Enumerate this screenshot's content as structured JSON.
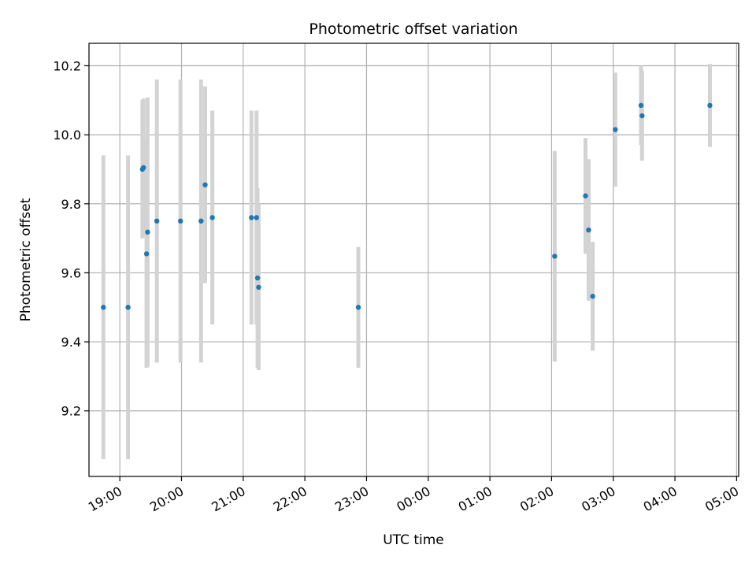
{
  "chart_data": {
    "type": "scatter",
    "title": "Photometric offset variation",
    "xlabel": "UTC time",
    "ylabel": "Photometric offset",
    "x_unit": "UTC time (HH:MM), 18:45 to 05:00 next day",
    "xlim": [
      "18:30",
      "05:02"
    ],
    "ylim": [
      9.01,
      10.265
    ],
    "x_ticks": [
      "19:00",
      "20:00",
      "21:00",
      "22:00",
      "23:00",
      "00:00",
      "01:00",
      "02:00",
      "03:00",
      "04:00",
      "05:00"
    ],
    "y_ticks": [
      9.2,
      9.4,
      9.6,
      9.8,
      10.0,
      10.2
    ],
    "grid": true,
    "marker_color": "#1f77b4",
    "errorbar_color": "#d3d3d3",
    "points": [
      {
        "time": "18:44",
        "y": 9.5,
        "err": 0.44
      },
      {
        "time": "19:08",
        "y": 9.5,
        "err": 0.44
      },
      {
        "time": "19:22",
        "y": 9.9,
        "err": 0.2
      },
      {
        "time": "19:23",
        "y": 9.905,
        "err": 0.2
      },
      {
        "time": "19:26",
        "y": 9.655,
        "err": 0.33
      },
      {
        "time": "19:27",
        "y": 9.718,
        "err": 0.39
      },
      {
        "time": "19:36",
        "y": 9.75,
        "err": 0.41
      },
      {
        "time": "19:59",
        "y": 9.75,
        "err": 0.41
      },
      {
        "time": "20:19",
        "y": 9.75,
        "err": 0.41
      },
      {
        "time": "20:23",
        "y": 9.855,
        "err": 0.285
      },
      {
        "time": "20:30",
        "y": 9.76,
        "err": 0.31
      },
      {
        "time": "21:08",
        "y": 9.76,
        "err": 0.31
      },
      {
        "time": "21:13",
        "y": 9.76,
        "err": 0.31
      },
      {
        "time": "21:14",
        "y": 9.585,
        "err": 0.26
      },
      {
        "time": "21:15",
        "y": 9.558,
        "err": 0.24
      },
      {
        "time": "22:52",
        "y": 9.5,
        "err": 0.175
      },
      {
        "time": "02:03",
        "y": 9.648,
        "err": 0.305
      },
      {
        "time": "02:33",
        "y": 9.823,
        "err": 0.168
      },
      {
        "time": "02:36",
        "y": 9.724,
        "err": 0.205
      },
      {
        "time": "02:40",
        "y": 9.532,
        "err": 0.158
      },
      {
        "time": "03:02",
        "y": 10.015,
        "err": 0.165
      },
      {
        "time": "03:27",
        "y": 10.085,
        "err": 0.115
      },
      {
        "time": "03:28",
        "y": 10.055,
        "err": 0.13
      },
      {
        "time": "04:34",
        "y": 10.085,
        "err": 0.12
      }
    ]
  }
}
